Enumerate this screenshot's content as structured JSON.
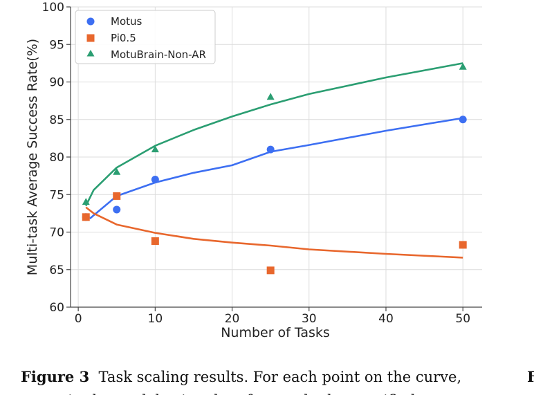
{
  "chart_data": {
    "type": "scatter",
    "xlabel": "Number of Tasks",
    "ylabel": "Multi-task Average Success Rate(%)",
    "xlim": [
      -1,
      52.5
    ],
    "ylim": [
      60,
      100
    ],
    "xticks": [
      0,
      10,
      20,
      30,
      40,
      50
    ],
    "yticks": [
      60,
      65,
      70,
      75,
      80,
      85,
      90,
      95,
      100
    ],
    "grid": true,
    "legend_position": "top-left",
    "series": [
      {
        "name": "Motus",
        "marker": "circle",
        "color": "#3d6ff2",
        "x": [
          1,
          5,
          10,
          25,
          50
        ],
        "y": [
          72,
          73,
          77,
          81,
          85
        ],
        "fit": [
          [
            1.5,
            71.8
          ],
          [
            5,
            74.8
          ],
          [
            10,
            76.6
          ],
          [
            15,
            77.9
          ],
          [
            20,
            78.9
          ],
          [
            25,
            80.7
          ],
          [
            30,
            81.6
          ],
          [
            40,
            83.5
          ],
          [
            50,
            85.2
          ]
        ]
      },
      {
        "name": "Pi0.5",
        "marker": "square",
        "color": "#e8672d",
        "x": [
          1,
          5,
          10,
          25,
          50
        ],
        "y": [
          72,
          74.8,
          68.8,
          64.9,
          68.3
        ],
        "fit": [
          [
            1,
            73.3
          ],
          [
            2,
            72.5
          ],
          [
            5,
            71.0
          ],
          [
            10,
            69.9
          ],
          [
            15,
            69.1
          ],
          [
            20,
            68.6
          ],
          [
            25,
            68.2
          ],
          [
            30,
            67.7
          ],
          [
            40,
            67.1
          ],
          [
            50,
            66.6
          ]
        ]
      },
      {
        "name": "MotuBrain-Non-AR",
        "marker": "triangle",
        "color": "#2b9e72",
        "x": [
          1,
          5,
          10,
          25,
          50
        ],
        "y": [
          74,
          78,
          81,
          88,
          92
        ],
        "fit": [
          [
            1,
            73.5
          ],
          [
            2,
            75.6
          ],
          [
            5,
            78.6
          ],
          [
            10,
            81.5
          ],
          [
            15,
            83.6
          ],
          [
            20,
            85.4
          ],
          [
            25,
            87.0
          ],
          [
            30,
            88.4
          ],
          [
            40,
            90.6
          ],
          [
            50,
            92.5
          ]
        ]
      }
    ]
  },
  "caption": {
    "label": "Figure 3",
    "text": "Task scaling results. For each point on the curve,",
    "next_line": "we train the model using data from only the specified",
    "right_cut": "F"
  }
}
